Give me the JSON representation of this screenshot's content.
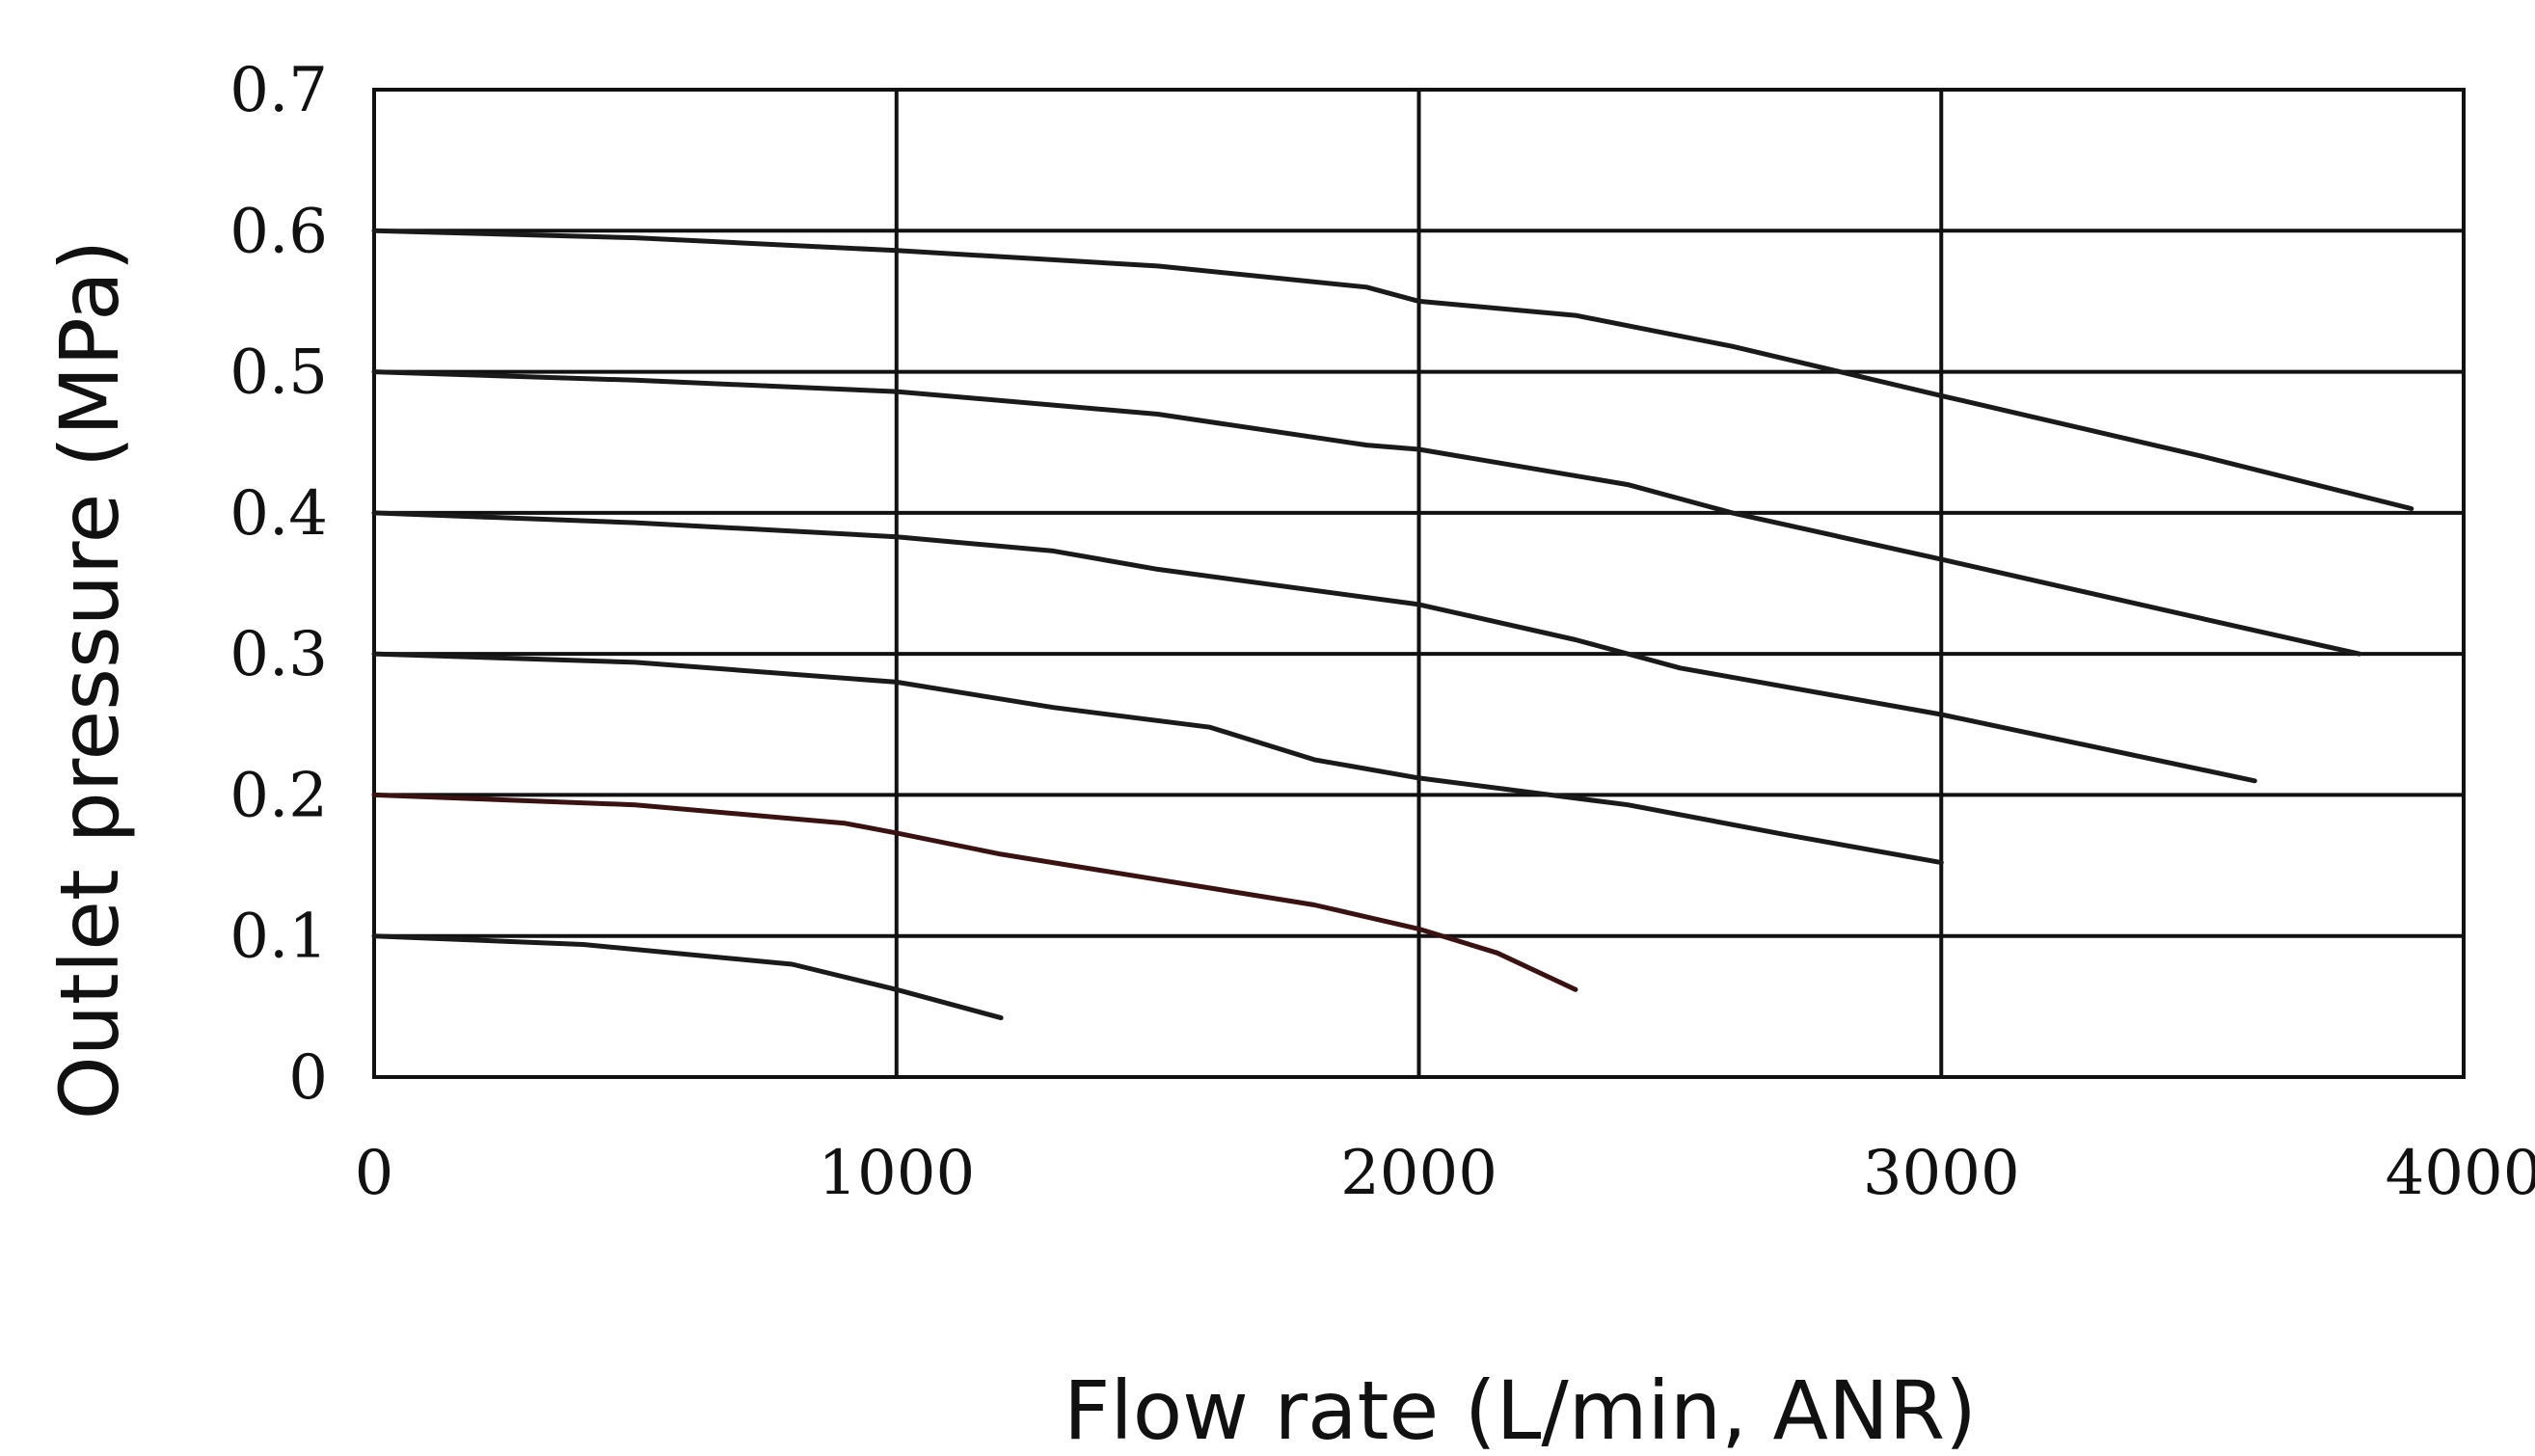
{
  "chart_data": {
    "type": "line",
    "title": "",
    "xlabel": "Flow rate  (L/min,  ANR)",
    "ylabel": "Outlet pressure (MPa)",
    "xlim": [
      0,
      4000
    ],
    "ylim": [
      0,
      0.7
    ],
    "grid": true,
    "legend": "none",
    "x_ticks": [
      "0",
      "1000",
      "2000",
      "3000",
      "4000"
    ],
    "y_ticks": [
      "0",
      "0.1",
      "0.2",
      "0.3",
      "0.4",
      "0.5",
      "0.6",
      "0.7"
    ],
    "series": [
      {
        "color": "#1a1a1a",
        "points": [
          [
            0,
            0.6
          ],
          [
            500,
            0.595
          ],
          [
            1000,
            0.586
          ],
          [
            1500,
            0.575
          ],
          [
            1900,
            0.56
          ],
          [
            2000,
            0.55
          ],
          [
            2300,
            0.54
          ],
          [
            2600,
            0.518
          ],
          [
            3000,
            0.483
          ],
          [
            3500,
            0.44
          ],
          [
            3900,
            0.403
          ]
        ]
      },
      {
        "color": "#1a1a1a",
        "points": [
          [
            0,
            0.5
          ],
          [
            500,
            0.494
          ],
          [
            1000,
            0.486
          ],
          [
            1500,
            0.47
          ],
          [
            1900,
            0.448
          ],
          [
            2000,
            0.445
          ],
          [
            2400,
            0.42
          ],
          [
            2600,
            0.4
          ],
          [
            3000,
            0.367
          ],
          [
            3500,
            0.325
          ],
          [
            3800,
            0.3
          ]
        ]
      },
      {
        "color": "#1a1a1a",
        "points": [
          [
            0,
            0.4
          ],
          [
            500,
            0.393
          ],
          [
            1000,
            0.383
          ],
          [
            1300,
            0.373
          ],
          [
            1500,
            0.36
          ],
          [
            2000,
            0.335
          ],
          [
            2300,
            0.31
          ],
          [
            2500,
            0.29
          ],
          [
            3000,
            0.257
          ],
          [
            3600,
            0.21
          ]
        ]
      },
      {
        "color": "#1a1a1a",
        "points": [
          [
            0,
            0.3
          ],
          [
            500,
            0.294
          ],
          [
            1000,
            0.28
          ],
          [
            1300,
            0.262
          ],
          [
            1600,
            0.248
          ],
          [
            1800,
            0.225
          ],
          [
            2000,
            0.212
          ],
          [
            2400,
            0.193
          ],
          [
            2700,
            0.172
          ],
          [
            3000,
            0.152
          ]
        ]
      },
      {
        "color": "#3a1212",
        "points": [
          [
            0,
            0.2
          ],
          [
            500,
            0.193
          ],
          [
            900,
            0.18
          ],
          [
            1000,
            0.173
          ],
          [
            1200,
            0.158
          ],
          [
            1500,
            0.14
          ],
          [
            1800,
            0.122
          ],
          [
            2000,
            0.105
          ],
          [
            2150,
            0.088
          ],
          [
            2300,
            0.062
          ]
        ]
      },
      {
        "color": "#1a1a1a",
        "points": [
          [
            0,
            0.1
          ],
          [
            400,
            0.094
          ],
          [
            800,
            0.08
          ],
          [
            1000,
            0.062
          ],
          [
            1200,
            0.042
          ]
        ]
      }
    ]
  }
}
